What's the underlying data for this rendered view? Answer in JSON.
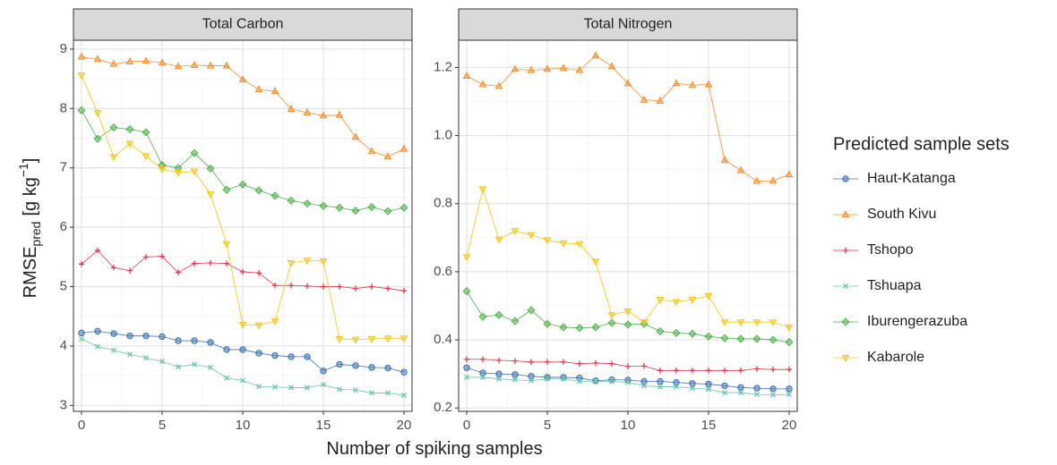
{
  "chart_data": [
    {
      "type": "line",
      "title": "Total Carbon",
      "x": [
        0,
        1,
        2,
        3,
        4,
        5,
        6,
        7,
        8,
        9,
        10,
        11,
        12,
        13,
        14,
        15,
        16,
        17,
        18,
        19,
        20
      ],
      "xlim": [
        -0.5,
        20.5
      ],
      "xticks": [
        0,
        5,
        10,
        15,
        20
      ],
      "ylim": [
        2.9,
        9.15
      ],
      "yticks": [
        3,
        4,
        5,
        6,
        7,
        8,
        9
      ],
      "grid": true,
      "series": [
        {
          "name": "Haut-Katanga",
          "color": "#3a6fb0",
          "marker": "circle",
          "values": [
            4.22,
            4.25,
            4.21,
            4.17,
            4.17,
            4.16,
            4.09,
            4.09,
            4.06,
            3.94,
            3.94,
            3.88,
            3.84,
            3.82,
            3.82,
            3.58,
            3.69,
            3.67,
            3.64,
            3.63,
            3.56
          ]
        },
        {
          "name": "South Kivu",
          "color": "#f28e2b",
          "marker": "triangle",
          "values": [
            8.87,
            8.83,
            8.75,
            8.79,
            8.8,
            8.77,
            8.71,
            8.73,
            8.72,
            8.72,
            8.49,
            8.32,
            8.29,
            7.99,
            7.93,
            7.88,
            7.89,
            7.52,
            7.28,
            7.19,
            7.32
          ]
        },
        {
          "name": "Tshopo",
          "color": "#e03a4e",
          "marker": "plus",
          "values": [
            5.38,
            5.61,
            5.32,
            5.27,
            5.5,
            5.51,
            5.24,
            5.39,
            5.4,
            5.39,
            5.25,
            5.23,
            5.02,
            5.02,
            5.01,
            5.0,
            5.0,
            4.97,
            5.0,
            4.97,
            4.93
          ]
        },
        {
          "name": "Tshuapa",
          "color": "#6cc3b0",
          "marker": "cross",
          "values": [
            4.12,
            3.99,
            3.93,
            3.86,
            3.8,
            3.74,
            3.65,
            3.69,
            3.64,
            3.46,
            3.42,
            3.32,
            3.31,
            3.3,
            3.3,
            3.35,
            3.27,
            3.26,
            3.21,
            3.21,
            3.17
          ]
        },
        {
          "name": "Iburengerazuba",
          "color": "#4daf4a",
          "marker": "diamond",
          "values": [
            7.97,
            7.49,
            7.68,
            7.65,
            7.6,
            7.05,
            7.0,
            7.25,
            6.99,
            6.63,
            6.72,
            6.62,
            6.53,
            6.45,
            6.4,
            6.36,
            6.33,
            6.28,
            6.34,
            6.27,
            6.33
          ]
        },
        {
          "name": "Kabarole",
          "color": "#f5c518",
          "marker": "triangle-down",
          "values": [
            8.56,
            7.93,
            7.18,
            7.41,
            7.2,
            6.98,
            6.92,
            6.94,
            6.56,
            5.72,
            4.36,
            4.35,
            4.42,
            5.4,
            5.44,
            5.43,
            4.12,
            4.11,
            4.12,
            4.13,
            4.13
          ]
        }
      ]
    },
    {
      "type": "line",
      "title": "Total Nitrogen",
      "x": [
        0,
        1,
        2,
        3,
        4,
        5,
        6,
        7,
        8,
        9,
        10,
        11,
        12,
        13,
        14,
        15,
        16,
        17,
        18,
        19,
        20
      ],
      "xlim": [
        -0.5,
        20.5
      ],
      "xticks": [
        0,
        5,
        10,
        15,
        20
      ],
      "ylim": [
        0.19,
        1.28
      ],
      "yticks": [
        0.2,
        0.4,
        0.6,
        0.8,
        {
          "value": 1,
          "label": "1.0"
        },
        1.2
      ],
      "grid": true,
      "series": [
        {
          "name": "Haut-Katanga",
          "color": "#3a6fb0",
          "marker": "circle",
          "values": [
            0.318,
            0.303,
            0.3,
            0.298,
            0.293,
            0.29,
            0.29,
            0.288,
            0.28,
            0.283,
            0.282,
            0.278,
            0.278,
            0.275,
            0.272,
            0.27,
            0.265,
            0.26,
            0.258,
            0.256,
            0.256
          ]
        },
        {
          "name": "South Kivu",
          "color": "#f28e2b",
          "marker": "triangle",
          "values": [
            1.175,
            1.15,
            1.145,
            1.195,
            1.192,
            1.195,
            1.198,
            1.192,
            1.235,
            1.203,
            1.153,
            1.105,
            1.102,
            1.153,
            1.148,
            1.15,
            0.928,
            0.898,
            0.866,
            0.867,
            0.886
          ]
        },
        {
          "name": "Tshopo",
          "color": "#e03a4e",
          "marker": "plus",
          "values": [
            0.343,
            0.343,
            0.34,
            0.338,
            0.335,
            0.335,
            0.335,
            0.33,
            0.332,
            0.33,
            0.322,
            0.323,
            0.31,
            0.31,
            0.31,
            0.31,
            0.31,
            0.31,
            0.315,
            0.313,
            0.313
          ]
        },
        {
          "name": "Tshuapa",
          "color": "#6cc3b0",
          "marker": "cross",
          "values": [
            0.29,
            0.29,
            0.285,
            0.283,
            0.28,
            0.285,
            0.285,
            0.278,
            0.278,
            0.278,
            0.275,
            0.265,
            0.262,
            0.262,
            0.258,
            0.255,
            0.245,
            0.245,
            0.24,
            0.238,
            0.24
          ]
        },
        {
          "name": "Iburengerazuba",
          "color": "#4daf4a",
          "marker": "diamond",
          "values": [
            0.543,
            0.468,
            0.473,
            0.455,
            0.487,
            0.447,
            0.437,
            0.435,
            0.437,
            0.45,
            0.445,
            0.447,
            0.425,
            0.42,
            0.418,
            0.41,
            0.405,
            0.403,
            0.403,
            0.4,
            0.393
          ]
        },
        {
          "name": "Kabarole",
          "color": "#f5c518",
          "marker": "triangle-down",
          "values": [
            0.643,
            0.843,
            0.695,
            0.72,
            0.708,
            0.693,
            0.684,
            0.682,
            0.63,
            0.473,
            0.484,
            0.452,
            0.518,
            0.512,
            0.518,
            0.529,
            0.452,
            0.452,
            0.452,
            0.452,
            0.437
          ]
        }
      ]
    }
  ],
  "x_label": "Number of spiking samples",
  "y_label": {
    "main": "RMSE",
    "sub": "pred",
    "unit": "[g kg",
    "sup": "−1",
    "close": "]"
  },
  "legend_title": "Predicted sample sets"
}
